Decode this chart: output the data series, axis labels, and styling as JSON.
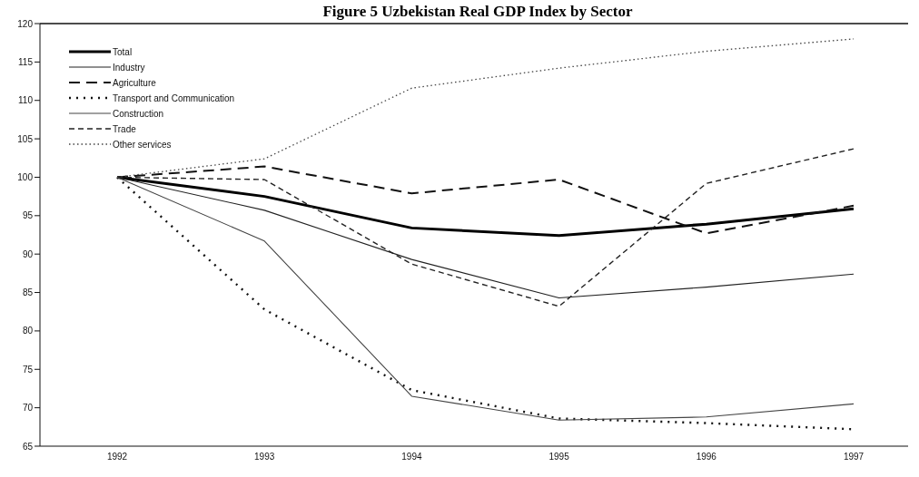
{
  "chart_data": {
    "type": "line",
    "title": "Figure 5 Uzbekistan Real GDP Index by Sector",
    "categories": [
      "1992",
      "1993",
      "1994",
      "1995",
      "1996",
      "1997"
    ],
    "series": [
      {
        "name": "Total",
        "color": "#000000",
        "line_style": "solid",
        "values": [
          100,
          97.5,
          93.4,
          92.4,
          93.9,
          95.9
        ]
      },
      {
        "name": "Industry",
        "color": "#222222",
        "line_style": "solid",
        "values": [
          100,
          95.7,
          89.3,
          84.3,
          85.7,
          87.4
        ]
      },
      {
        "name": "Agriculture",
        "color": "#111111",
        "line_style": "dashed",
        "values": [
          100,
          101.4,
          97.9,
          99.7,
          92.7,
          96.3
        ]
      },
      {
        "name": "Transport and Communication",
        "color": "#111111",
        "line_style": "dotted",
        "values": [
          100,
          82.8,
          72.3,
          68.6,
          68.0,
          67.2
        ]
      },
      {
        "name": "Construction",
        "color": "#444444",
        "line_style": "solid",
        "values": [
          100,
          91.7,
          71.5,
          68.4,
          68.8,
          70.5
        ]
      },
      {
        "name": "Trade",
        "color": "#222222",
        "line_style": "dashed",
        "values": [
          100,
          99.7,
          88.7,
          83.2,
          99.2,
          103.7
        ]
      },
      {
        "name": "Other services",
        "color": "#444444",
        "line_style": "dotted",
        "values": [
          100,
          102.4,
          111.6,
          114.2,
          116.4,
          118.0
        ]
      }
    ],
    "ylim": [
      65,
      120
    ],
    "yticks": [
      65,
      70,
      75,
      80,
      85,
      90,
      95,
      100,
      105,
      110,
      115,
      120
    ],
    "legend": "top left",
    "marker": "none"
  }
}
